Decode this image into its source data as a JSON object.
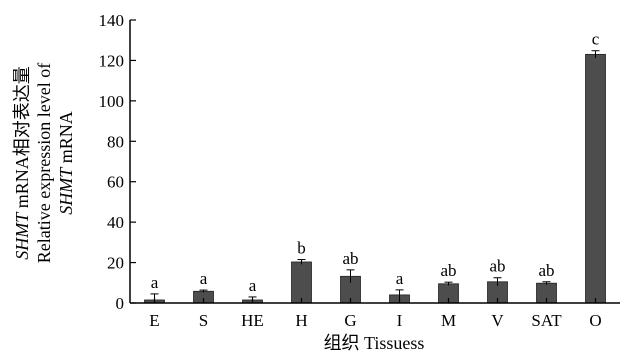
{
  "chart_data": {
    "type": "bar",
    "categories": [
      "E",
      "S",
      "HE",
      "H",
      "G",
      "I",
      "M",
      "V",
      "SAT",
      "O"
    ],
    "values": [
      1.5,
      5.8,
      1.5,
      20.3,
      13.2,
      4.0,
      9.5,
      10.5,
      9.8,
      123.0
    ],
    "errors": [
      3.0,
      0.6,
      1.5,
      1.2,
      3.2,
      2.5,
      0.8,
      2.0,
      0.7,
      1.8
    ],
    "significance": [
      "a",
      "a",
      "a",
      "b",
      "ab",
      "a",
      "ab",
      "ab",
      "ab",
      "c"
    ],
    "xlabel": "组织 Tissuess",
    "ylabel": {
      "line1_italic": "SHMT",
      "line1_rest": " mRNA相对表达量",
      "line2": "Relative expression level of",
      "line3_italic": "SHMT",
      "line3_rest": " mRNA"
    },
    "ylim": [
      0,
      140
    ],
    "yticks": [
      0,
      20,
      40,
      60,
      80,
      100,
      120,
      140
    ],
    "bar_color": "#4d4d4d",
    "axis_color": "#000000",
    "grid": false
  }
}
